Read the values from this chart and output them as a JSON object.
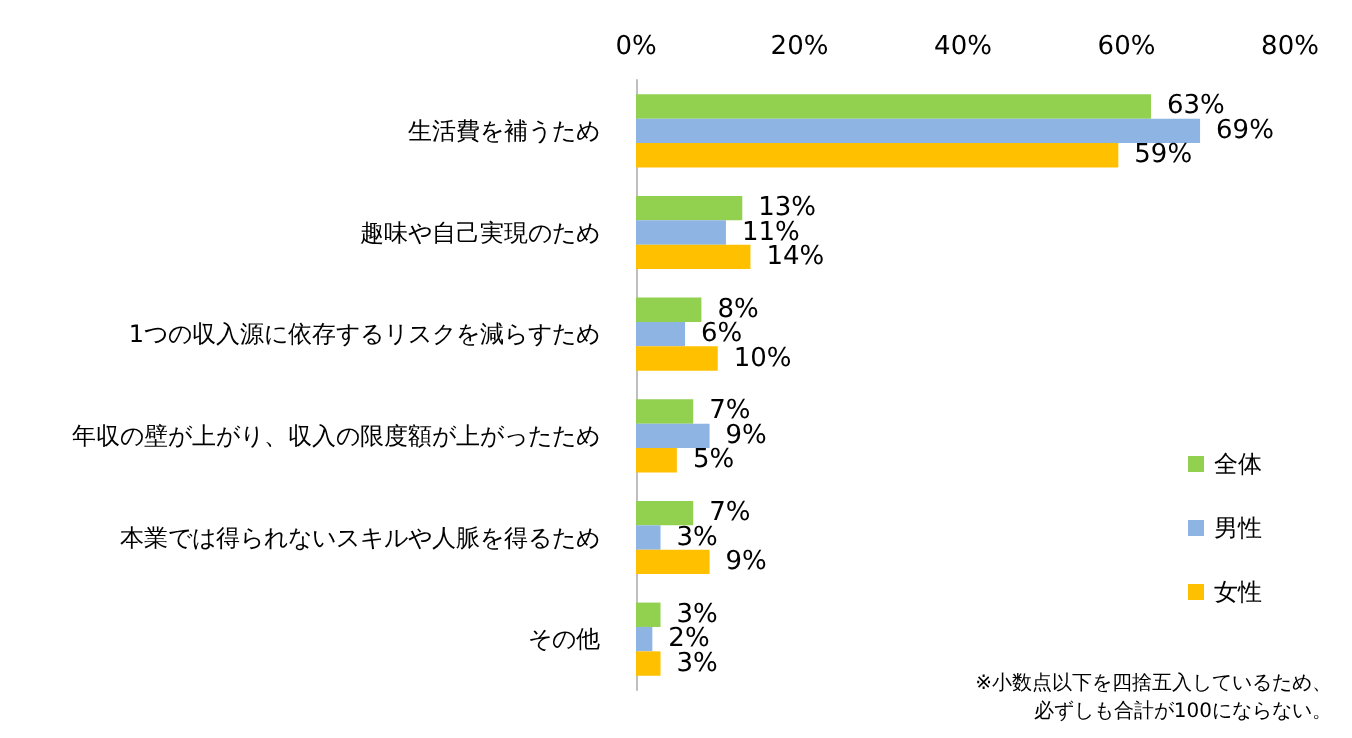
{
  "chart_data": {
    "type": "bar",
    "orientation": "horizontal",
    "categories": [
      "生活費を補うため",
      "趣味や自己実現のため",
      "1つの収入源に依存するリスクを減らすため",
      "年収の壁が上がり、収入の限度額が上がったため",
      "本業では得られないスキルや人脈を得るため",
      "その他"
    ],
    "series": [
      {
        "name": "全体",
        "color": "#92d050",
        "values": [
          63,
          13,
          8,
          7,
          7,
          3
        ],
        "value_labels": [
          "63%",
          "13%",
          "8%",
          "7%",
          "7%",
          "3%"
        ]
      },
      {
        "name": "男性",
        "color": "#8db4e2",
        "values": [
          69,
          11,
          6,
          9,
          3,
          2
        ],
        "value_labels": [
          "69%",
          "11%",
          "6%",
          "9%",
          "3%",
          "2%"
        ]
      },
      {
        "name": "女性",
        "color": "#ffc000",
        "values": [
          59,
          14,
          10,
          5,
          9,
          3
        ],
        "value_labels": [
          "59%",
          "14%",
          "10%",
          "5%",
          "9%",
          "3%"
        ]
      }
    ],
    "xlim": [
      0,
      80
    ],
    "xticks": [
      {
        "value": 0,
        "label": "0%"
      },
      {
        "value": 20,
        "label": "20%"
      },
      {
        "value": 40,
        "label": "40%"
      },
      {
        "value": 60,
        "label": "60%"
      },
      {
        "value": 80,
        "label": "80%"
      }
    ],
    "grid": false,
    "legend": "bottom right",
    "annotations": [
      "※小数点以下を四捨五入しているため、",
      "必ずしも合計が100にならない。"
    ]
  }
}
